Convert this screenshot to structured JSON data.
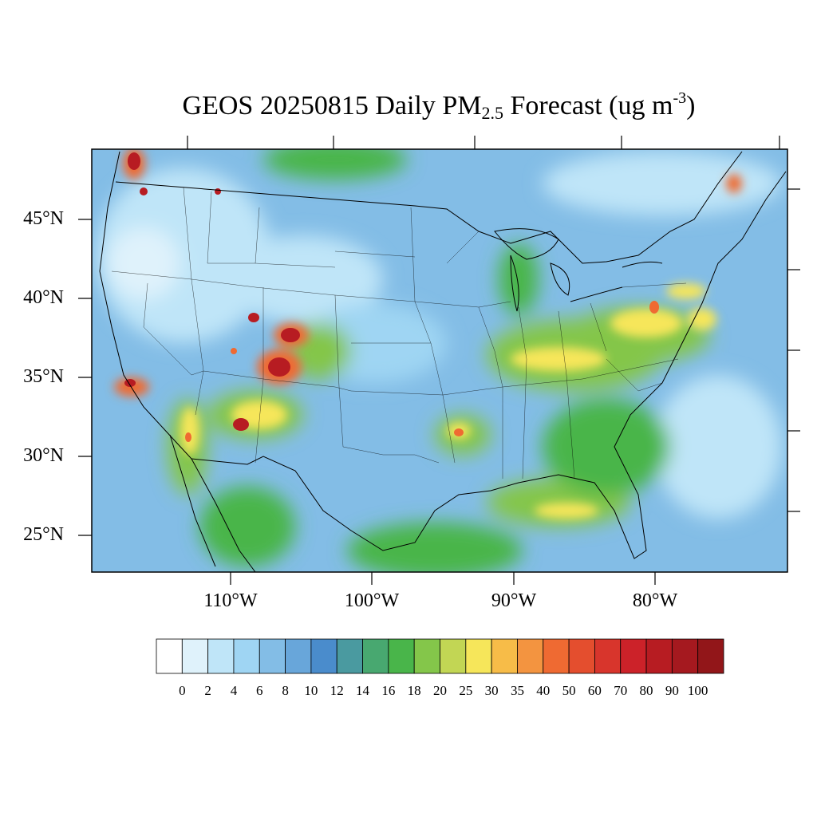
{
  "map": {
    "title_main": "GEOS 20250815 Daily PM",
    "title_sub": "2.5",
    "title_mid": " Forecast (ug m",
    "title_sup": "-3",
    "title_end": ")",
    "lat_labels": [
      "45°N",
      "40°N",
      "35°N",
      "30°N",
      "25°N"
    ],
    "lon_labels": [
      "110°W",
      "100°W",
      "90°W",
      "80°W"
    ],
    "colorbar": {
      "colors": [
        "#ffffff",
        "#dff2fb",
        "#bfe5f8",
        "#9fd5f3",
        "#83bde6",
        "#68a6da",
        "#4a8ccc",
        "#4a9aa0",
        "#48a870",
        "#49b54a",
        "#84c64a",
        "#c2d654",
        "#f6e65a",
        "#f7bc48",
        "#f39440",
        "#ef6a32",
        "#e44e2e",
        "#d8352c",
        "#cc2229",
        "#b71c22",
        "#a5191f",
        "#921619"
      ],
      "labels": [
        "0",
        "2",
        "4",
        "6",
        "8",
        "10",
        "12",
        "14",
        "16",
        "18",
        "20",
        "25",
        "30",
        "35",
        "40",
        "50",
        "60",
        "70",
        "80",
        "90",
        "100"
      ]
    },
    "background_color": "#83bde6",
    "hotspot_colors": {
      "high": "#f6e65a",
      "very_high": "#ef6a32",
      "extreme": "#b71c22"
    }
  }
}
